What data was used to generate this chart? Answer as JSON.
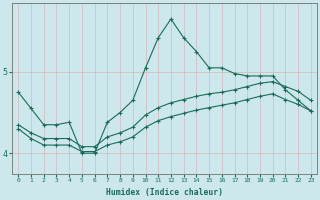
{
  "xlabel": "Humidex (Indice chaleur)",
  "bg_color": "#cce8ec",
  "line_color": "#1a6b5a",
  "grid_color": "#d4b8be",
  "xlim": [
    -0.5,
    23.5
  ],
  "ylim": [
    3.75,
    5.85
  ],
  "yticks": [
    4,
    5
  ],
  "xticks": [
    0,
    1,
    2,
    3,
    4,
    5,
    6,
    7,
    8,
    9,
    10,
    11,
    12,
    13,
    14,
    15,
    16,
    17,
    18,
    19,
    20,
    21,
    22,
    23
  ],
  "line1_x": [
    0,
    1,
    2,
    3,
    4,
    5,
    6,
    7,
    8,
    9,
    10,
    11,
    12,
    13,
    14,
    15,
    16,
    17,
    18,
    19,
    20,
    21,
    22,
    23
  ],
  "line1_y": [
    4.75,
    4.55,
    4.35,
    4.35,
    4.38,
    4.0,
    4.0,
    4.38,
    4.5,
    4.65,
    5.05,
    5.42,
    5.65,
    5.42,
    5.25,
    5.05,
    5.05,
    4.98,
    4.95,
    4.95,
    4.95,
    4.78,
    4.65,
    4.52
  ],
  "line2_x": [
    0,
    1,
    2,
    3,
    4,
    5,
    6,
    7,
    8,
    9,
    10,
    11,
    12,
    13,
    14,
    15,
    16,
    17,
    18,
    19,
    20,
    21,
    22,
    23
  ],
  "line2_y": [
    4.35,
    4.25,
    4.18,
    4.18,
    4.18,
    4.08,
    4.08,
    4.2,
    4.25,
    4.32,
    4.47,
    4.56,
    4.62,
    4.66,
    4.7,
    4.73,
    4.75,
    4.78,
    4.82,
    4.86,
    4.88,
    4.82,
    4.76,
    4.65
  ],
  "line3_x": [
    0,
    1,
    2,
    3,
    4,
    5,
    6,
    7,
    8,
    9,
    10,
    11,
    12,
    13,
    14,
    15,
    16,
    17,
    18,
    19,
    20,
    21,
    22,
    23
  ],
  "line3_y": [
    4.3,
    4.18,
    4.1,
    4.1,
    4.1,
    4.02,
    4.02,
    4.1,
    4.14,
    4.2,
    4.32,
    4.4,
    4.45,
    4.49,
    4.53,
    4.56,
    4.59,
    4.62,
    4.66,
    4.7,
    4.73,
    4.66,
    4.6,
    4.52
  ],
  "marker": "+",
  "marker_size": 3,
  "linewidth": 0.8
}
